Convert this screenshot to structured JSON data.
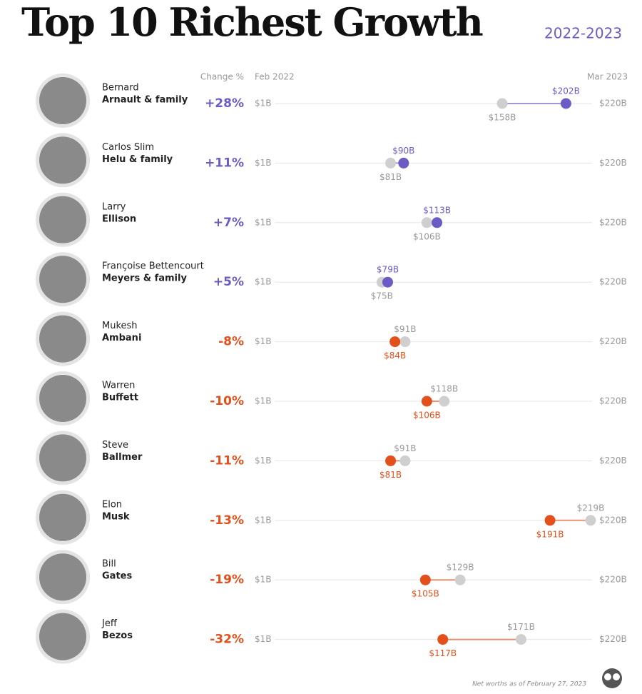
{
  "chart_data": {
    "type": "dumbbell",
    "title": "Top 10 Richest Growth",
    "subtitle": "2022-2023",
    "change_header": "Change %",
    "first_names": [
      "Bernard",
      "Carlos Slim",
      "Larry",
      "Françoise Bettencourt",
      "Mukesh",
      "Warren",
      "Steve",
      "Elon",
      "Bill",
      "Jeff"
    ],
    "last_names": [
      "Arnault & family",
      "Helu & family",
      "Ellison",
      "Meyers & family",
      "Ambani",
      "Buffett",
      "Ballmer",
      "Musk",
      "Gates",
      "Bezos"
    ],
    "change_labels": [
      "+28%",
      "+11%",
      "+7%",
      "+5%",
      "-8%",
      "-10%",
      "-11%",
      "-13%",
      "-19%",
      "-32%"
    ],
    "xlim": [
      1,
      220
    ],
    "xticks": [
      {
        "value": 1,
        "label": "$1B"
      },
      {
        "value": 220,
        "label": "$220B"
      }
    ],
    "series": [
      {
        "name": "Feb 2022",
        "color": "#cfcfcf",
        "values": [
          158,
          81,
          106,
          75,
          91,
          118,
          91,
          219,
          129,
          171
        ],
        "value_labels": [
          "$158B",
          "$81B",
          "$106B",
          "$75B",
          "$91B",
          "$118B",
          "$91B",
          "$219B",
          "$129B",
          "$171B"
        ]
      },
      {
        "name": "Mar 2023",
        "colors": [
          "#6a5cc4",
          "#6a5cc4",
          "#6a5cc4",
          "#6a5cc4",
          "#e4501b",
          "#e4501b",
          "#e4501b",
          "#e4501b",
          "#e4501b",
          "#e4501b"
        ],
        "values": [
          202,
          90,
          113,
          79,
          84,
          106,
          81,
          191,
          105,
          117
        ],
        "value_labels": [
          "$202B",
          "$90B",
          "$113B",
          "$79B",
          "$84B",
          "$106B",
          "$81B",
          "$191B",
          "$105B",
          "$117B"
        ]
      }
    ],
    "note": "Net worths as of February 27, 2023"
  }
}
